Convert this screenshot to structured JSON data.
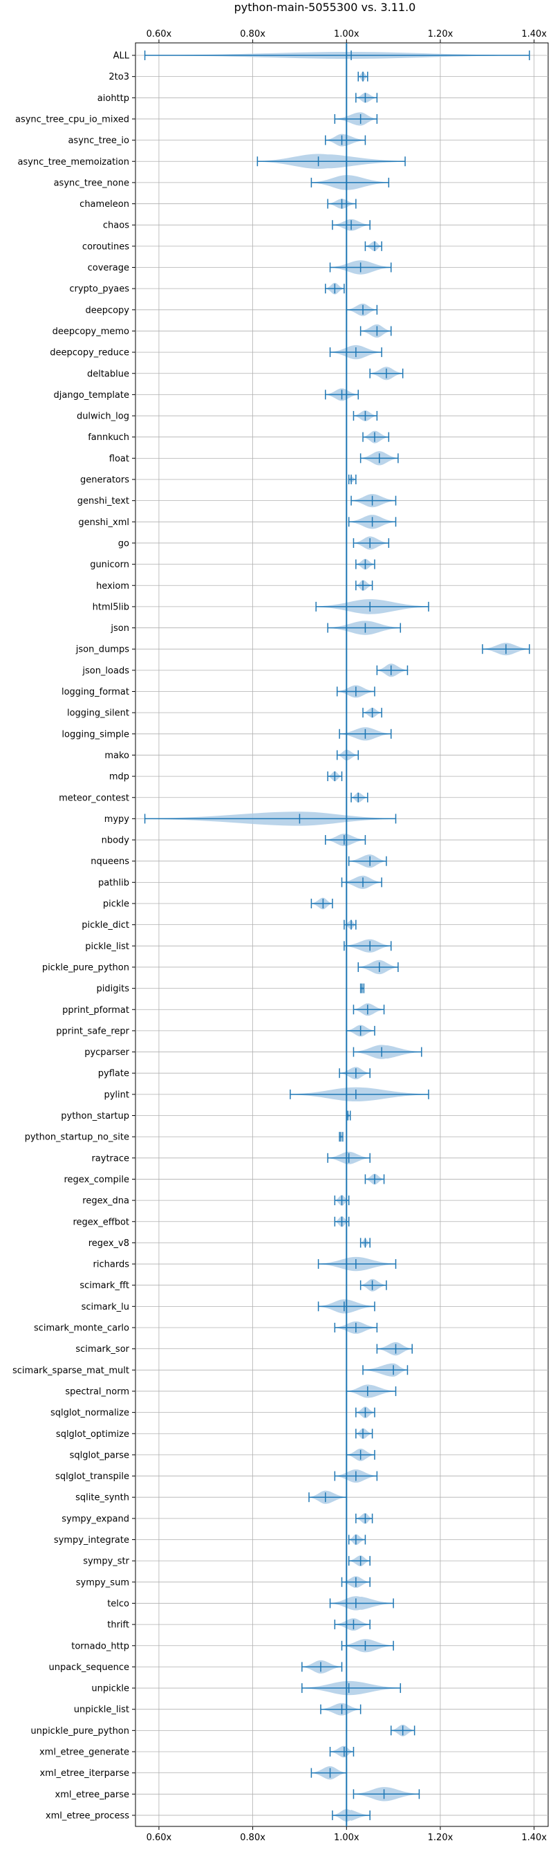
{
  "chart_data": {
    "type": "violin",
    "title": "python-main-5055300 vs. 3.11.0",
    "xlabel": "",
    "ylabel": "",
    "xlim": [
      0.55,
      1.43
    ],
    "xticks": [
      0.6,
      0.8,
      1.0,
      1.2,
      1.4
    ],
    "xtick_labels": [
      "0.60x",
      "0.80x",
      "1.00x",
      "1.20x",
      "1.40x"
    ],
    "reference_line": 1.0,
    "grid": true,
    "accent_color": "#1f77b4",
    "violin_color": "#aecce6",
    "benchmarks": [
      {
        "name": "ALL",
        "min": 0.57,
        "median": 1.01,
        "max": 1.39,
        "width": 0.42
      },
      {
        "name": "2to3",
        "min": 1.025,
        "median": 1.035,
        "max": 1.045,
        "width": 0.6
      },
      {
        "name": "aiohttp",
        "min": 1.02,
        "median": 1.04,
        "max": 1.065,
        "width": 0.6
      },
      {
        "name": "async_tree_cpu_io_mixed",
        "min": 0.975,
        "median": 1.03,
        "max": 1.065,
        "width": 0.8
      },
      {
        "name": "async_tree_io",
        "min": 0.955,
        "median": 0.99,
        "max": 1.04,
        "width": 0.75
      },
      {
        "name": "async_tree_memoization",
        "min": 0.81,
        "median": 0.94,
        "max": 1.125,
        "width": 0.9
      },
      {
        "name": "async_tree_none",
        "min": 0.925,
        "median": 1.0,
        "max": 1.09,
        "width": 0.9
      },
      {
        "name": "chameleon",
        "min": 0.96,
        "median": 0.99,
        "max": 1.02,
        "width": 0.6
      },
      {
        "name": "chaos",
        "min": 0.97,
        "median": 1.01,
        "max": 1.05,
        "width": 0.7
      },
      {
        "name": "coroutines",
        "min": 1.04,
        "median": 1.06,
        "max": 1.075,
        "width": 0.6
      },
      {
        "name": "coverage",
        "min": 0.965,
        "median": 1.03,
        "max": 1.095,
        "width": 0.85
      },
      {
        "name": "crypto_pyaes",
        "min": 0.955,
        "median": 0.975,
        "max": 0.995,
        "width": 0.7
      },
      {
        "name": "deepcopy",
        "min": 1.0,
        "median": 1.035,
        "max": 1.065,
        "width": 0.75
      },
      {
        "name": "deepcopy_memo",
        "min": 1.03,
        "median": 1.065,
        "max": 1.095,
        "width": 0.8
      },
      {
        "name": "deepcopy_reduce",
        "min": 0.965,
        "median": 1.02,
        "max": 1.075,
        "width": 0.85
      },
      {
        "name": "deltablue",
        "min": 1.05,
        "median": 1.085,
        "max": 1.12,
        "width": 0.8
      },
      {
        "name": "django_template",
        "min": 0.955,
        "median": 0.99,
        "max": 1.025,
        "width": 0.75
      },
      {
        "name": "dulwich_log",
        "min": 1.015,
        "median": 1.04,
        "max": 1.065,
        "width": 0.65
      },
      {
        "name": "fannkuch",
        "min": 1.035,
        "median": 1.06,
        "max": 1.09,
        "width": 0.75
      },
      {
        "name": "float",
        "min": 1.03,
        "median": 1.07,
        "max": 1.11,
        "width": 0.85
      },
      {
        "name": "generators",
        "min": 1.005,
        "median": 1.01,
        "max": 1.02,
        "width": 0.45
      },
      {
        "name": "genshi_text",
        "min": 1.01,
        "median": 1.055,
        "max": 1.105,
        "width": 0.8
      },
      {
        "name": "genshi_xml",
        "min": 1.005,
        "median": 1.055,
        "max": 1.105,
        "width": 0.85
      },
      {
        "name": "go",
        "min": 1.015,
        "median": 1.05,
        "max": 1.09,
        "width": 0.8
      },
      {
        "name": "gunicorn",
        "min": 1.02,
        "median": 1.04,
        "max": 1.06,
        "width": 0.65
      },
      {
        "name": "hexiom",
        "min": 1.02,
        "median": 1.035,
        "max": 1.055,
        "width": 0.65
      },
      {
        "name": "html5lib",
        "min": 0.935,
        "median": 1.05,
        "max": 1.175,
        "width": 0.9
      },
      {
        "name": "json",
        "min": 0.96,
        "median": 1.04,
        "max": 1.115,
        "width": 0.85
      },
      {
        "name": "json_dumps",
        "min": 1.29,
        "median": 1.34,
        "max": 1.39,
        "width": 0.75
      },
      {
        "name": "json_loads",
        "min": 1.065,
        "median": 1.095,
        "max": 1.13,
        "width": 0.8
      },
      {
        "name": "logging_format",
        "min": 0.98,
        "median": 1.02,
        "max": 1.06,
        "width": 0.75
      },
      {
        "name": "logging_silent",
        "min": 1.035,
        "median": 1.055,
        "max": 1.075,
        "width": 0.6
      },
      {
        "name": "logging_simple",
        "min": 0.985,
        "median": 1.04,
        "max": 1.095,
        "width": 0.8
      },
      {
        "name": "mako",
        "min": 0.98,
        "median": 1.0,
        "max": 1.025,
        "width": 0.65
      },
      {
        "name": "mdp",
        "min": 0.96,
        "median": 0.975,
        "max": 0.99,
        "width": 0.6
      },
      {
        "name": "meteor_contest",
        "min": 1.01,
        "median": 1.025,
        "max": 1.045,
        "width": 0.6
      },
      {
        "name": "mypy",
        "min": 0.57,
        "median": 0.9,
        "max": 1.105,
        "width": 0.85
      },
      {
        "name": "nbody",
        "min": 0.955,
        "median": 0.995,
        "max": 1.04,
        "width": 0.75
      },
      {
        "name": "nqueens",
        "min": 1.005,
        "median": 1.05,
        "max": 1.085,
        "width": 0.8
      },
      {
        "name": "pathlib",
        "min": 0.99,
        "median": 1.035,
        "max": 1.075,
        "width": 0.8
      },
      {
        "name": "pickle",
        "min": 0.925,
        "median": 0.95,
        "max": 0.97,
        "width": 0.7
      },
      {
        "name": "pickle_dict",
        "min": 0.995,
        "median": 1.01,
        "max": 1.02,
        "width": 0.55
      },
      {
        "name": "pickle_list",
        "min": 0.995,
        "median": 1.05,
        "max": 1.095,
        "width": 0.8
      },
      {
        "name": "pickle_pure_python",
        "min": 1.025,
        "median": 1.07,
        "max": 1.11,
        "width": 0.85
      },
      {
        "name": "pidigits",
        "min": 1.03,
        "median": 1.033,
        "max": 1.037,
        "width": 0.25
      },
      {
        "name": "pprint_pformat",
        "min": 1.015,
        "median": 1.045,
        "max": 1.08,
        "width": 0.75
      },
      {
        "name": "pprint_safe_repr",
        "min": 1.0,
        "median": 1.03,
        "max": 1.06,
        "width": 0.7
      },
      {
        "name": "pycparser",
        "min": 1.015,
        "median": 1.075,
        "max": 1.16,
        "width": 0.85
      },
      {
        "name": "pyflate",
        "min": 0.985,
        "median": 1.02,
        "max": 1.05,
        "width": 0.75
      },
      {
        "name": "pylint",
        "min": 0.88,
        "median": 1.02,
        "max": 1.175,
        "width": 0.85
      },
      {
        "name": "python_startup",
        "min": 1.0,
        "median": 1.003,
        "max": 1.008,
        "width": 0.3
      },
      {
        "name": "python_startup_no_site",
        "min": 0.985,
        "median": 0.988,
        "max": 0.992,
        "width": 0.3
      },
      {
        "name": "raytrace",
        "min": 0.96,
        "median": 1.005,
        "max": 1.05,
        "width": 0.75
      },
      {
        "name": "regex_compile",
        "min": 1.04,
        "median": 1.06,
        "max": 1.08,
        "width": 0.65
      },
      {
        "name": "regex_dna",
        "min": 0.975,
        "median": 0.99,
        "max": 1.005,
        "width": 0.65
      },
      {
        "name": "regex_effbot",
        "min": 0.975,
        "median": 0.99,
        "max": 1.005,
        "width": 0.65
      },
      {
        "name": "regex_v8",
        "min": 1.03,
        "median": 1.04,
        "max": 1.05,
        "width": 0.5
      },
      {
        "name": "richards",
        "min": 0.94,
        "median": 1.02,
        "max": 1.105,
        "width": 0.85
      },
      {
        "name": "scimark_fft",
        "min": 1.03,
        "median": 1.055,
        "max": 1.085,
        "width": 0.75
      },
      {
        "name": "scimark_lu",
        "min": 0.94,
        "median": 0.995,
        "max": 1.06,
        "width": 0.85
      },
      {
        "name": "scimark_monte_carlo",
        "min": 0.975,
        "median": 1.02,
        "max": 1.065,
        "width": 0.75
      },
      {
        "name": "scimark_sor",
        "min": 1.065,
        "median": 1.105,
        "max": 1.14,
        "width": 0.8
      },
      {
        "name": "scimark_sparse_mat_mult",
        "min": 1.035,
        "median": 1.1,
        "max": 1.13,
        "width": 0.8
      },
      {
        "name": "spectral_norm",
        "min": 1.0,
        "median": 1.045,
        "max": 1.105,
        "width": 0.8
      },
      {
        "name": "sqlglot_normalize",
        "min": 1.02,
        "median": 1.04,
        "max": 1.06,
        "width": 0.7
      },
      {
        "name": "sqlglot_optimize",
        "min": 1.02,
        "median": 1.035,
        "max": 1.055,
        "width": 0.65
      },
      {
        "name": "sqlglot_parse",
        "min": 1.0,
        "median": 1.03,
        "max": 1.06,
        "width": 0.75
      },
      {
        "name": "sqlglot_transpile",
        "min": 0.975,
        "median": 1.02,
        "max": 1.065,
        "width": 0.8
      },
      {
        "name": "sqlite_synth",
        "min": 0.92,
        "median": 0.955,
        "max": 1.0,
        "width": 0.8
      },
      {
        "name": "sympy_expand",
        "min": 1.02,
        "median": 1.04,
        "max": 1.055,
        "width": 0.65
      },
      {
        "name": "sympy_integrate",
        "min": 1.005,
        "median": 1.02,
        "max": 1.04,
        "width": 0.65
      },
      {
        "name": "sympy_str",
        "min": 1.005,
        "median": 1.03,
        "max": 1.05,
        "width": 0.65
      },
      {
        "name": "sympy_sum",
        "min": 0.99,
        "median": 1.02,
        "max": 1.05,
        "width": 0.7
      },
      {
        "name": "telco",
        "min": 0.965,
        "median": 1.02,
        "max": 1.1,
        "width": 0.85
      },
      {
        "name": "thrift",
        "min": 0.975,
        "median": 1.015,
        "max": 1.05,
        "width": 0.75
      },
      {
        "name": "tornado_http",
        "min": 0.99,
        "median": 1.04,
        "max": 1.1,
        "width": 0.8
      },
      {
        "name": "unpack_sequence",
        "min": 0.905,
        "median": 0.945,
        "max": 0.99,
        "width": 0.8
      },
      {
        "name": "unpickle",
        "min": 0.905,
        "median": 1.005,
        "max": 1.115,
        "width": 0.85
      },
      {
        "name": "unpickle_list",
        "min": 0.945,
        "median": 0.99,
        "max": 1.03,
        "width": 0.75
      },
      {
        "name": "unpickle_pure_python",
        "min": 1.095,
        "median": 1.12,
        "max": 1.145,
        "width": 0.7
      },
      {
        "name": "xml_etree_generate",
        "min": 0.965,
        "median": 0.995,
        "max": 1.015,
        "width": 0.7
      },
      {
        "name": "xml_etree_iterparse",
        "min": 0.925,
        "median": 0.965,
        "max": 1.0,
        "width": 0.8
      },
      {
        "name": "xml_etree_parse",
        "min": 1.015,
        "median": 1.08,
        "max": 1.155,
        "width": 0.85
      },
      {
        "name": "xml_etree_process",
        "min": 0.97,
        "median": 1.0,
        "max": 1.05,
        "width": 0.75
      }
    ]
  }
}
